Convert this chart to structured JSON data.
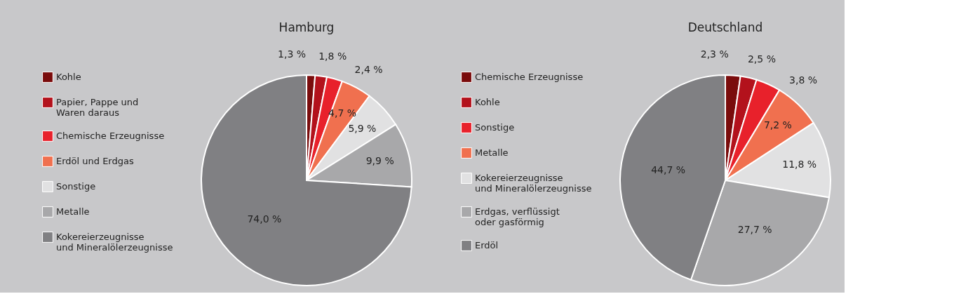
{
  "chart_data": [
    {
      "type": "pie",
      "title": "Hamburg",
      "legend": "left",
      "categories": [
        "Kohle",
        "Papier, Pappe und Waren daraus",
        "Chemische Erzeugnisse",
        "Erdöl und Erdgas",
        "Sonstige",
        "Metalle",
        "Kokereierzeugnisse und Mineralölerzeugnisse"
      ],
      "values": [
        1.3,
        1.8,
        2.4,
        4.7,
        5.9,
        9.9,
        74.0
      ],
      "value_labels": [
        "1,3 %",
        "1,8 %",
        "2,4 %",
        "4,7 %",
        "5,9 %",
        "9,9 %",
        "74,0 %"
      ],
      "colors": [
        "#7a0c0c",
        "#b3121c",
        "#e8212b",
        "#f0704f",
        "#e1e1e2",
        "#a8a8aa",
        "#808083"
      ]
    },
    {
      "type": "pie",
      "title": "Deutschland",
      "legend": "left",
      "categories": [
        "Chemische Erzeugnisse",
        "Kohle",
        "Sonstige",
        "Metalle",
        "Kokereierzeugnisse und Mineralölerzeugnisse",
        "Erdgas, verflüssigt oder gasförmig",
        "Erdöl"
      ],
      "values": [
        2.3,
        2.5,
        3.8,
        7.2,
        11.8,
        27.7,
        44.7
      ],
      "value_labels": [
        "2,3 %",
        "2,5 %",
        "3,8 %",
        "7,2 %",
        "11,8 %",
        "27,7 %",
        "44,7 %"
      ],
      "colors": [
        "#7a0c0c",
        "#b3121c",
        "#e8212b",
        "#f0704f",
        "#e1e1e2",
        "#a8a8aa",
        "#808083"
      ]
    }
  ]
}
